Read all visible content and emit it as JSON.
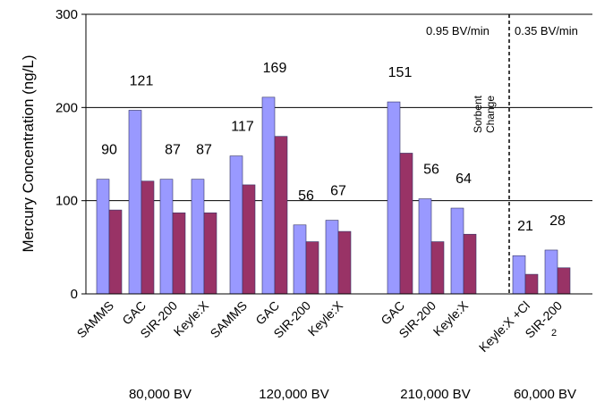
{
  "chart_data": {
    "type": "bar",
    "ylabel": "Mercury Concentration (ng/L)",
    "ylim": [
      0,
      300
    ],
    "yticks": [
      0,
      100,
      200,
      300
    ],
    "grid": true,
    "colors": {
      "inlet": "#9999ff",
      "outlet": "#993366",
      "grid": "#000000"
    },
    "series": [
      {
        "values": [
          123,
          197,
          123,
          123,
          148,
          211,
          74,
          79,
          206,
          102,
          92,
          41,
          47
        ]
      },
      {
        "values": [
          90,
          121,
          87,
          87,
          117,
          169,
          56,
          67,
          151,
          56,
          64,
          21,
          28
        ]
      }
    ],
    "categories": [
      "SAMMS",
      "GAC",
      "SIR-200",
      "Keyle:X",
      "SAMMS",
      "GAC",
      "SIR-200",
      "Keyle:X",
      "GAC",
      "SIR-200",
      "Keyle:X",
      "Keyle:X +Cl",
      "SIR-200"
    ],
    "data_labels": [
      "90",
      "121",
      "87",
      "87",
      "117",
      "169",
      "56",
      "67",
      "151",
      "56",
      "64",
      "21",
      "28"
    ],
    "groups": [
      {
        "label": "80,000 BV",
        "first": 0,
        "count": 4
      },
      {
        "label": "120,000 BV",
        "first": 4,
        "count": 4
      },
      {
        "label": "210,000 BV",
        "first": 8,
        "count": 3
      },
      {
        "label": "60,000 BV",
        "first": 11,
        "count": 2
      }
    ],
    "annotations": {
      "rate_left": "0.95 BV/min",
      "rate_right": "0.35 BV/min",
      "sorbent_line1": "Sorbent",
      "sorbent_line2": "Change",
      "superscript_2": "2"
    }
  }
}
